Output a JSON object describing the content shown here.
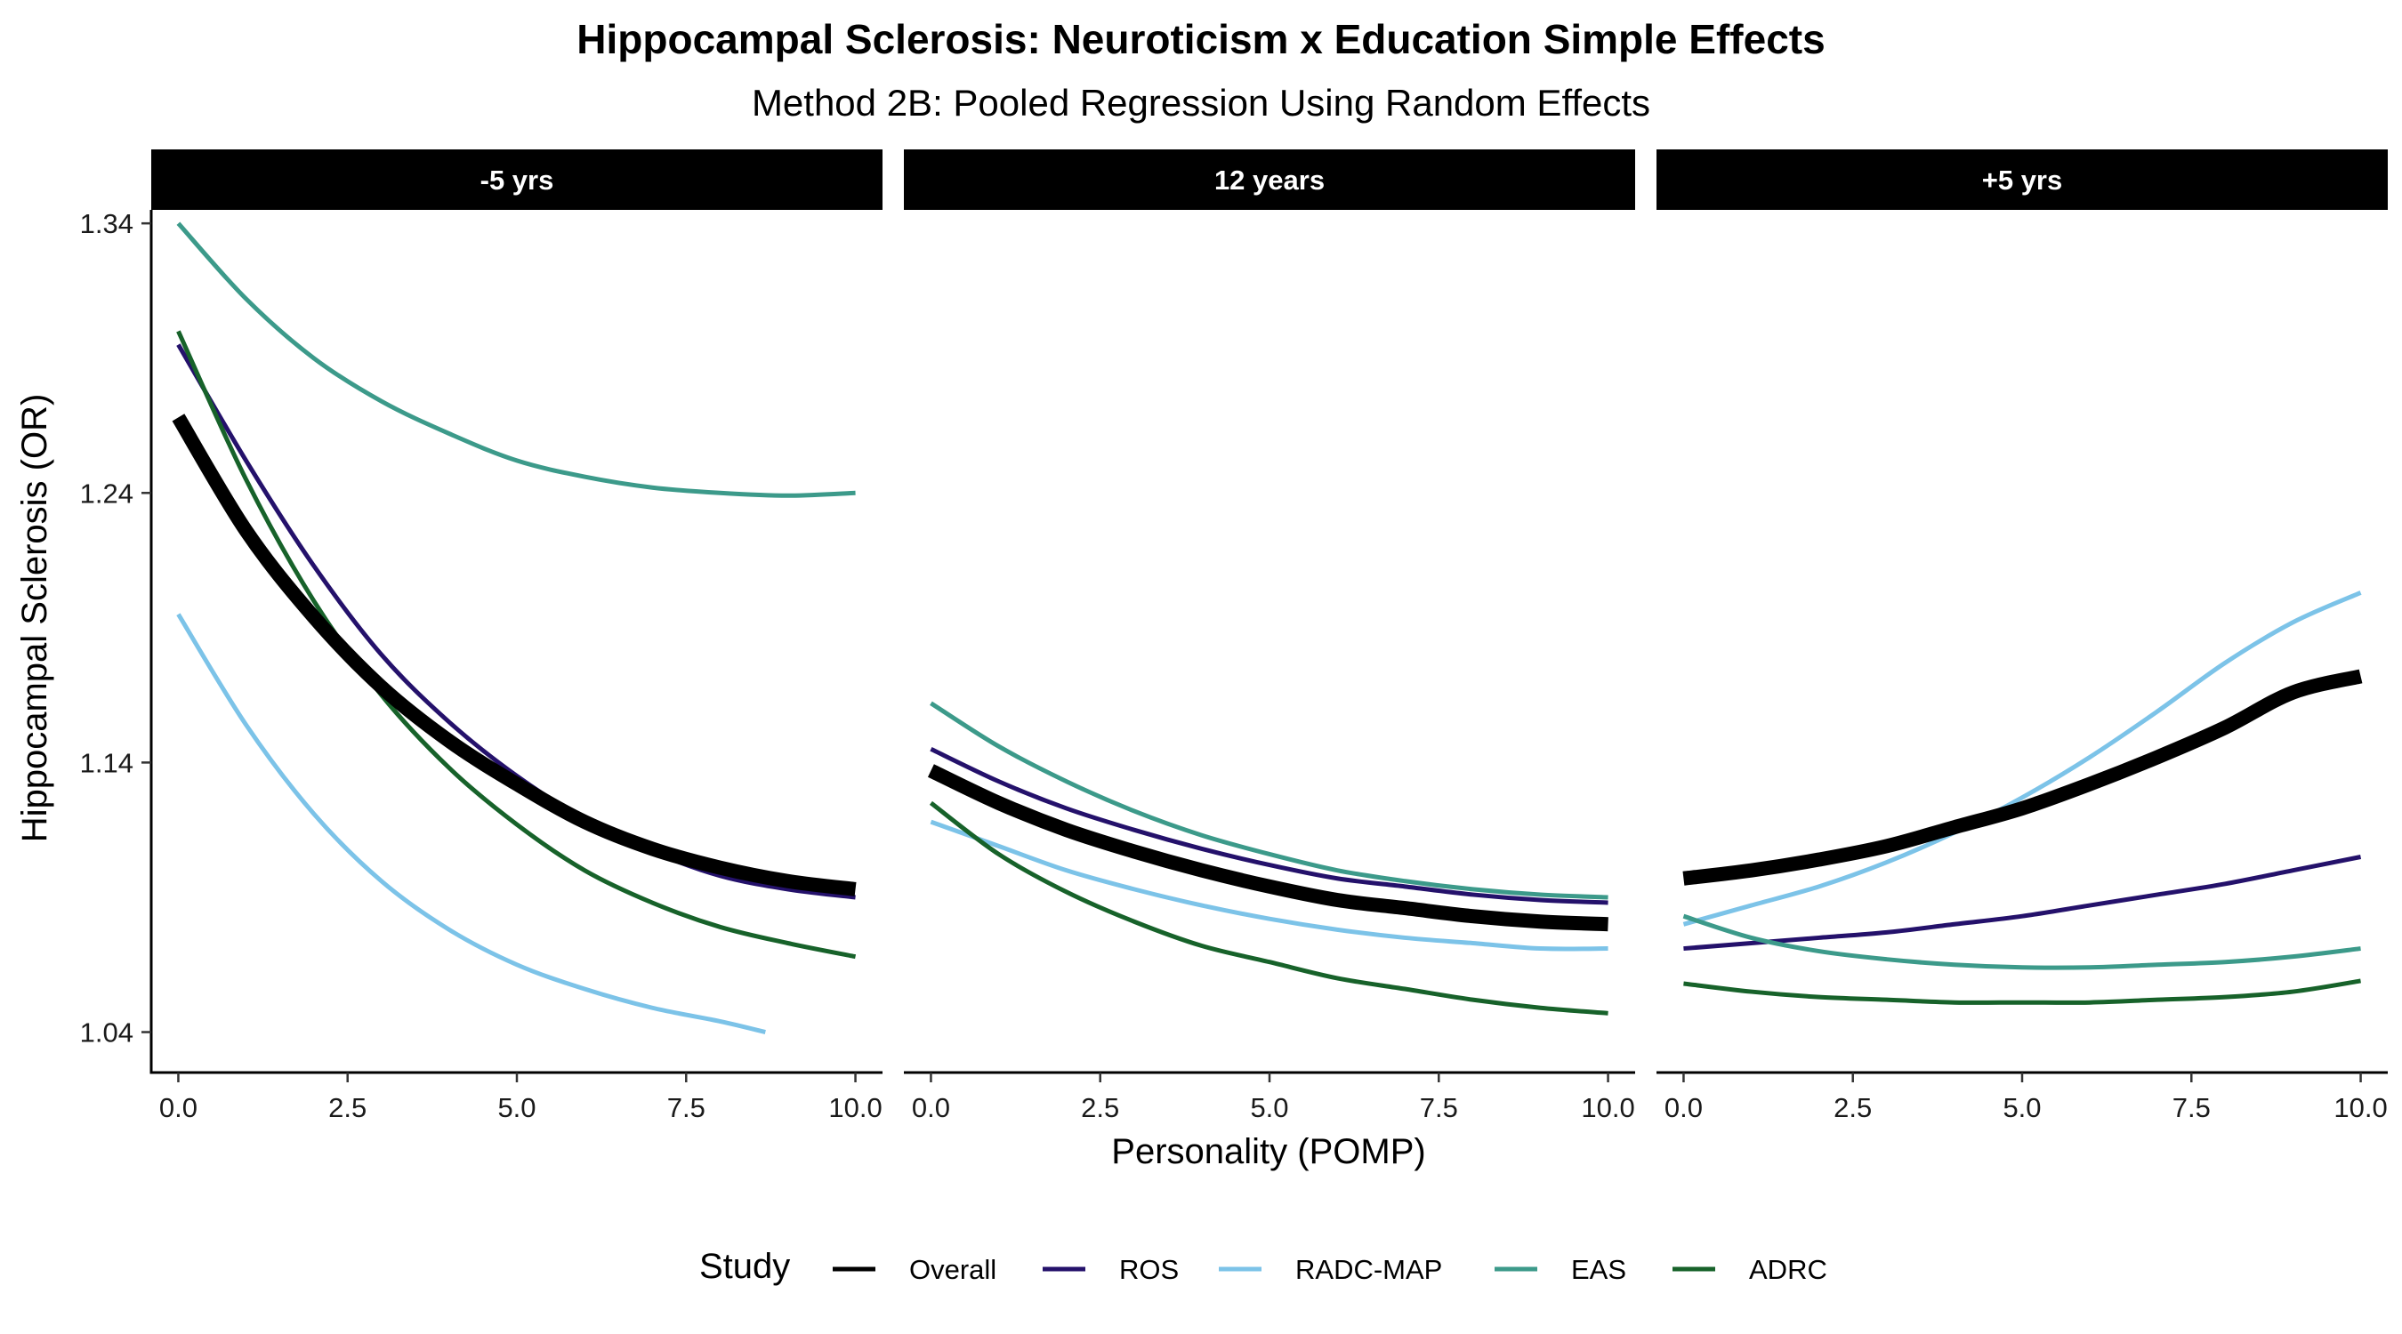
{
  "title": "Hippocampal Sclerosis: Neuroticism x Education Simple Effects",
  "subtitle": "Method 2B: Pooled Regression Using Random Effects",
  "legend": {
    "title": "Study",
    "items": [
      {
        "label": "Overall",
        "color": "#000000"
      },
      {
        "label": "ROS",
        "color": "#24116b"
      },
      {
        "label": "RADC-MAP",
        "color": "#7cc3e8"
      },
      {
        "label": "EAS",
        "color": "#3c9a8a"
      },
      {
        "label": "ADRC",
        "color": "#17622a"
      }
    ]
  },
  "chart_data": {
    "type": "line",
    "xlabel": "Personality (POMP)",
    "ylabel": "Hippocampal Sclerosis (OR)",
    "xlim": [
      -0.4,
      10.4
    ],
    "ylim": [
      1.025,
      1.345
    ],
    "x_ticks": [
      0.0,
      2.5,
      5.0,
      7.5,
      10.0
    ],
    "x_tick_labels": [
      "0.0",
      "2.5",
      "5.0",
      "7.5",
      "10.0"
    ],
    "y_ticks": [
      1.04,
      1.14,
      1.24,
      1.34
    ],
    "y_tick_labels": [
      "1.04",
      "1.14",
      "1.24",
      "1.34"
    ],
    "grid": false,
    "legend_position": "bottom",
    "panels": [
      {
        "label": "-5 yrs",
        "series": [
          {
            "name": "Overall",
            "x": [
              0,
              1,
              2,
              3,
              4,
              5,
              6,
              7,
              8,
              9,
              10
            ],
            "y": [
              1.268,
              1.226,
              1.194,
              1.168,
              1.148,
              1.132,
              1.118,
              1.108,
              1.101,
              1.096,
              1.093
            ]
          },
          {
            "name": "ROS",
            "x": [
              0,
              1,
              2,
              3,
              4,
              5,
              6,
              7,
              8,
              9,
              10
            ],
            "y": [
              1.295,
              1.252,
              1.213,
              1.18,
              1.155,
              1.135,
              1.119,
              1.107,
              1.098,
              1.093,
              1.09
            ]
          },
          {
            "name": "RADC-MAP",
            "x": [
              0,
              1,
              2,
              3,
              4,
              5,
              6,
              7,
              8,
              8.67
            ],
            "y": [
              1.195,
              1.154,
              1.121,
              1.096,
              1.078,
              1.065,
              1.056,
              1.049,
              1.044,
              1.04
            ]
          },
          {
            "name": "EAS",
            "x": [
              0,
              1,
              2,
              3,
              4,
              5,
              6,
              7,
              8,
              9,
              10
            ],
            "y": [
              1.34,
              1.312,
              1.29,
              1.274,
              1.262,
              1.252,
              1.246,
              1.242,
              1.24,
              1.239,
              1.24
            ]
          },
          {
            "name": "ADRC",
            "x": [
              0,
              1,
              2,
              3,
              4,
              5,
              6,
              7,
              8,
              9,
              10
            ],
            "y": [
              1.3,
              1.245,
              1.2,
              1.165,
              1.138,
              1.117,
              1.1,
              1.088,
              1.079,
              1.073,
              1.068
            ]
          }
        ]
      },
      {
        "label": "12 years",
        "series": [
          {
            "name": "Overall",
            "x": [
              0,
              1,
              2,
              3,
              4,
              5,
              6,
              7,
              8,
              9,
              10
            ],
            "y": [
              1.137,
              1.125,
              1.115,
              1.107,
              1.1,
              1.094,
              1.089,
              1.086,
              1.083,
              1.081,
              1.08
            ]
          },
          {
            "name": "ROS",
            "x": [
              0,
              1,
              2,
              3,
              4,
              5,
              6,
              7,
              8,
              9,
              10
            ],
            "y": [
              1.145,
              1.133,
              1.123,
              1.115,
              1.108,
              1.102,
              1.097,
              1.094,
              1.091,
              1.089,
              1.088
            ]
          },
          {
            "name": "RADC-MAP",
            "x": [
              0,
              1,
              2,
              3,
              4,
              5,
              6,
              7,
              8,
              9,
              10
            ],
            "y": [
              1.118,
              1.109,
              1.1,
              1.093,
              1.087,
              1.082,
              1.078,
              1.075,
              1.073,
              1.071,
              1.071
            ]
          },
          {
            "name": "EAS",
            "x": [
              0,
              1,
              2,
              3,
              4,
              5,
              6,
              7,
              8,
              9,
              10
            ],
            "y": [
              1.162,
              1.146,
              1.133,
              1.122,
              1.113,
              1.106,
              1.1,
              1.096,
              1.093,
              1.091,
              1.09
            ]
          },
          {
            "name": "ADRC",
            "x": [
              0,
              1,
              2,
              3,
              4,
              5,
              6,
              7,
              8,
              9,
              10
            ],
            "y": [
              1.125,
              1.106,
              1.092,
              1.081,
              1.072,
              1.066,
              1.06,
              1.056,
              1.052,
              1.049,
              1.047
            ]
          }
        ]
      },
      {
        "label": "+5 yrs",
        "series": [
          {
            "name": "Overall",
            "x": [
              0,
              1,
              2,
              3,
              4,
              5,
              6,
              7,
              8,
              9,
              10
            ],
            "y": [
              1.097,
              1.1,
              1.104,
              1.109,
              1.116,
              1.123,
              1.132,
              1.142,
              1.153,
              1.166,
              1.172
            ]
          },
          {
            "name": "ROS",
            "x": [
              0,
              1,
              2,
              3,
              4,
              5,
              6,
              7,
              8,
              9,
              10
            ],
            "y": [
              1.071,
              1.073,
              1.075,
              1.077,
              1.08,
              1.083,
              1.087,
              1.091,
              1.095,
              1.1,
              1.105
            ]
          },
          {
            "name": "RADC-MAP",
            "x": [
              0,
              1,
              2,
              3,
              4,
              5,
              6,
              7,
              8,
              9,
              10
            ],
            "y": [
              1.08,
              1.087,
              1.094,
              1.103,
              1.114,
              1.127,
              1.142,
              1.159,
              1.177,
              1.192,
              1.203
            ]
          },
          {
            "name": "EAS",
            "x": [
              0,
              1,
              2,
              3,
              4,
              5,
              6,
              7,
              8,
              9,
              10
            ],
            "y": [
              1.083,
              1.075,
              1.07,
              1.067,
              1.065,
              1.064,
              1.064,
              1.065,
              1.066,
              1.068,
              1.071
            ]
          },
          {
            "name": "ADRC",
            "x": [
              0,
              1,
              2,
              3,
              4,
              5,
              6,
              7,
              8,
              9,
              10
            ],
            "y": [
              1.058,
              1.055,
              1.053,
              1.052,
              1.051,
              1.051,
              1.051,
              1.052,
              1.053,
              1.055,
              1.059
            ]
          }
        ]
      }
    ]
  }
}
